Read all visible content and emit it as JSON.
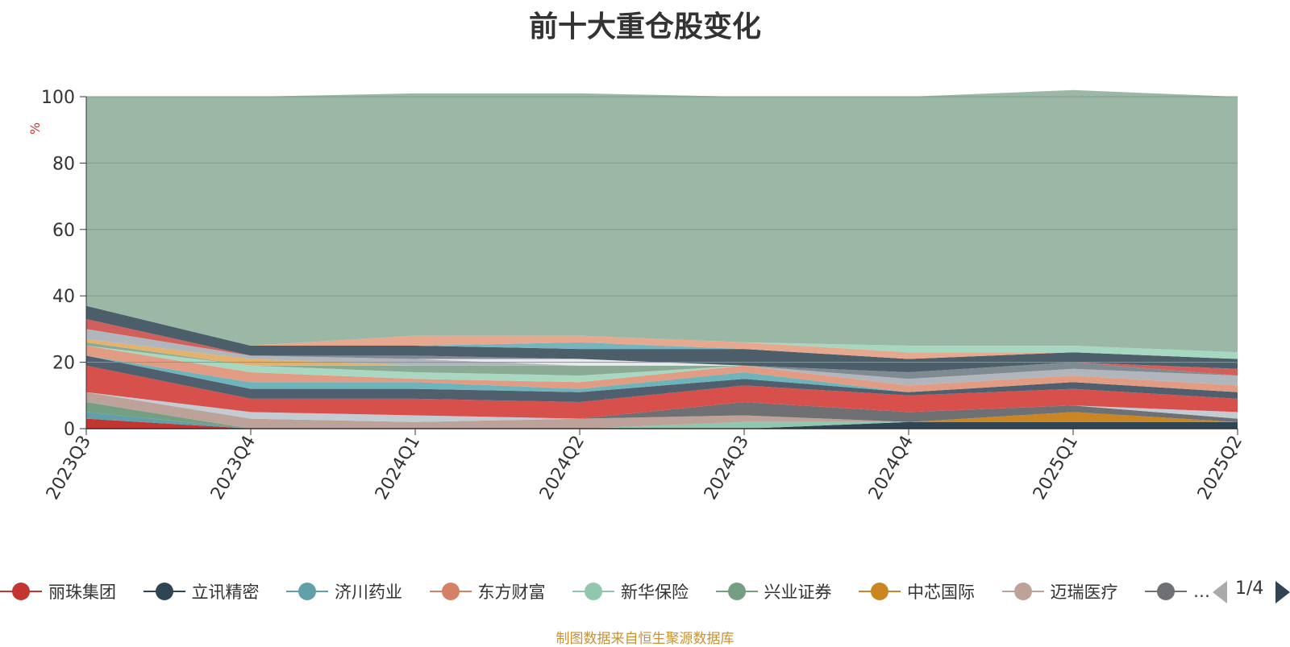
{
  "title": "前十大重仓股变化",
  "source_note": "制图数据来自恒生聚源数据库",
  "pager": {
    "text": "1/4"
  },
  "chart_data": {
    "type": "area",
    "stacked": true,
    "title": "前十大重仓股变化",
    "ylabel": "%",
    "ylim": [
      0,
      100
    ],
    "yticks": [
      0,
      20,
      40,
      60,
      80,
      100
    ],
    "grid": true,
    "legend_position": "bottom",
    "categories": [
      "2023Q3",
      "2023Q4",
      "2024Q1",
      "2024Q2",
      "2024Q3",
      "2024Q4",
      "2025Q1",
      "2025Q2"
    ],
    "series": [
      {
        "name": "丽珠集团",
        "color": "#c23531",
        "values": [
          3,
          0,
          0,
          0,
          0,
          0,
          0,
          0
        ]
      },
      {
        "name": "立讯精密",
        "color": "#2f4554",
        "values": [
          0,
          0,
          0,
          0,
          0,
          2,
          2,
          2
        ]
      },
      {
        "name": "济川药业",
        "color": "#61a0a8",
        "values": [
          2,
          0,
          0,
          0,
          0,
          0,
          0,
          0
        ]
      },
      {
        "name": "东方财富",
        "color": "#d48265",
        "values": [
          0,
          0,
          0,
          0,
          0,
          0,
          0,
          0
        ]
      },
      {
        "name": "新华保险",
        "color": "#91c7ae",
        "values": [
          0,
          0,
          0,
          0,
          2,
          0,
          0,
          0
        ]
      },
      {
        "name": "兴业证券",
        "color": "#749f83",
        "values": [
          3,
          0,
          0,
          0,
          0,
          0,
          0,
          0
        ]
      },
      {
        "name": "中芯国际",
        "color": "#ca8622",
        "values": [
          0,
          0,
          0,
          0,
          0,
          0,
          3,
          0
        ]
      },
      {
        "name": "迈瑞医疗",
        "color": "#bda29a",
        "values": [
          3,
          3,
          2,
          3,
          2,
          0,
          0,
          0
        ]
      },
      {
        "name": "…",
        "color": "#6e7074",
        "values": [
          0,
          0,
          0,
          0,
          4,
          3,
          2,
          1
        ]
      },
      {
        "color": "#c4ccd3",
        "values": [
          0,
          2,
          2,
          0,
          0,
          0,
          0,
          2
        ]
      },
      {
        "color": "#d7504b",
        "values": [
          8,
          4,
          5,
          5,
          5,
          5,
          5,
          4
        ]
      },
      {
        "color": "#4f5f6d",
        "values": [
          3,
          3,
          3,
          3,
          2,
          1,
          2,
          2
        ]
      },
      {
        "color": "#6fb3bb",
        "values": [
          0,
          2,
          2,
          1,
          2,
          0,
          0,
          0
        ]
      },
      {
        "color": "#e39c84",
        "values": [
          3,
          3,
          1,
          2,
          2,
          2,
          2,
          2
        ]
      },
      {
        "color": "#a8d8c2",
        "values": [
          0,
          2,
          2,
          2,
          0,
          0,
          0,
          0
        ]
      },
      {
        "color": "#8aaa96",
        "values": [
          1,
          0,
          2,
          3,
          0,
          0,
          0,
          0
        ]
      },
      {
        "color": "#e3b26e",
        "values": [
          1,
          2,
          0,
          0,
          0,
          0,
          0,
          0
        ]
      },
      {
        "color": "#b0b6bb",
        "values": [
          3,
          1,
          2,
          0,
          0,
          2,
          2,
          3
        ]
      },
      {
        "color": "#e9e9ee",
        "values": [
          0,
          0,
          0,
          2,
          0,
          0,
          0,
          0
        ]
      },
      {
        "color": "#808a91",
        "values": [
          0,
          0,
          1,
          0,
          0,
          2,
          2,
          0
        ]
      },
      {
        "color": "#d1605c",
        "values": [
          3,
          0,
          0,
          0,
          0,
          0,
          0,
          2
        ]
      },
      {
        "color": "#4d5e6b",
        "values": [
          4,
          3,
          3,
          3,
          5,
          4,
          3,
          3
        ]
      },
      {
        "color": "#76b5bd",
        "values": [
          0,
          0,
          0,
          2,
          0,
          0,
          0,
          0
        ]
      },
      {
        "color": "#e6a88e",
        "values": [
          0,
          0,
          3,
          2,
          2,
          2,
          0,
          0
        ]
      },
      {
        "color": "#a5d7c1",
        "values": [
          0,
          0,
          0,
          0,
          0,
          2,
          2,
          2
        ]
      },
      {
        "color": "#9bb8a7",
        "values": [
          63,
          75,
          73,
          73,
          74,
          75,
          77,
          77
        ]
      }
    ]
  }
}
